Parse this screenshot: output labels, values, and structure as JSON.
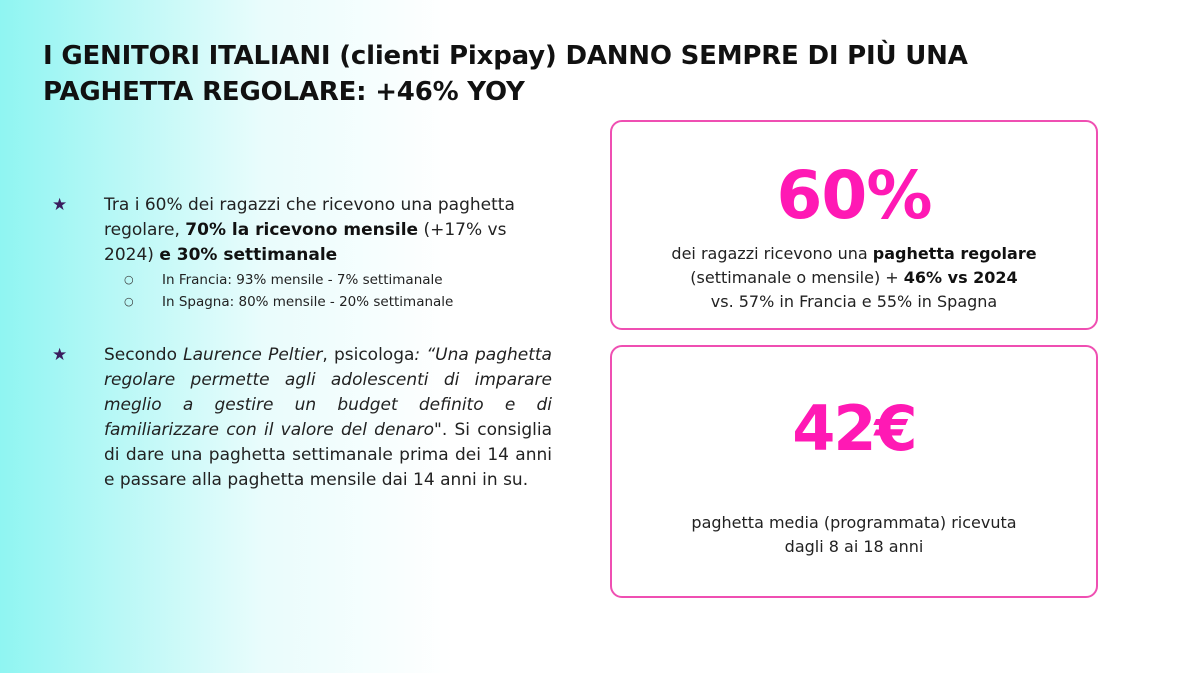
{
  "title": {
    "line1": "I GENITORI ITALIANI (clienti Pixpay) DANNO SEMPRE DI PIÙ UNA",
    "line2": "PAGHETTA REGOLARE: +46% YOY"
  },
  "bullets": {
    "star_icon": "★",
    "sub_icon": "○",
    "b1": {
      "t1": "Tra i 60% dei ragazzi che ricevono una paghetta regolare, ",
      "t2": "70% la ricevono mensile",
      "t3": " (+17% vs 2024) ",
      "t4": "e 30% settimanale",
      "sub": [
        "In Francia: 93% mensile - 7% settimanale",
        "In Spagna: 80% mensile - 20% settimanale"
      ]
    },
    "b2": {
      "t1": "Secondo ",
      "t2": "Laurence Peltier",
      "t3": ", psicologa",
      "t4": ": “",
      "t5": "Una paghetta regolare permette agli adolescenti di imparare meglio a gestire un budget definito e di familiarizzare con il valore del denaro",
      "t6": "\". Si consiglia di dare una paghetta settimanale prima dei 14 anni e passare alla paghetta mensile dai 14 anni in su."
    }
  },
  "card1": {
    "big": "60%",
    "l1a": "dei ragazzi ricevono una ",
    "l1b": "paghetta regolare",
    "l2a": "(settimanale o mensile) + ",
    "l2b": "46% vs 2024",
    "l3": "vs. 57% in Francia e 55% in Spagna"
  },
  "card2": {
    "big": "42€",
    "l1": "paghetta media (programmata) ricevuta",
    "l2": "dagli 8 ai 18 anni"
  },
  "colors": {
    "accent": "#ff19b4",
    "card_border": "#ef4fb2",
    "star": "#3a1d5e",
    "gradient_left": "#8ff5f2"
  }
}
